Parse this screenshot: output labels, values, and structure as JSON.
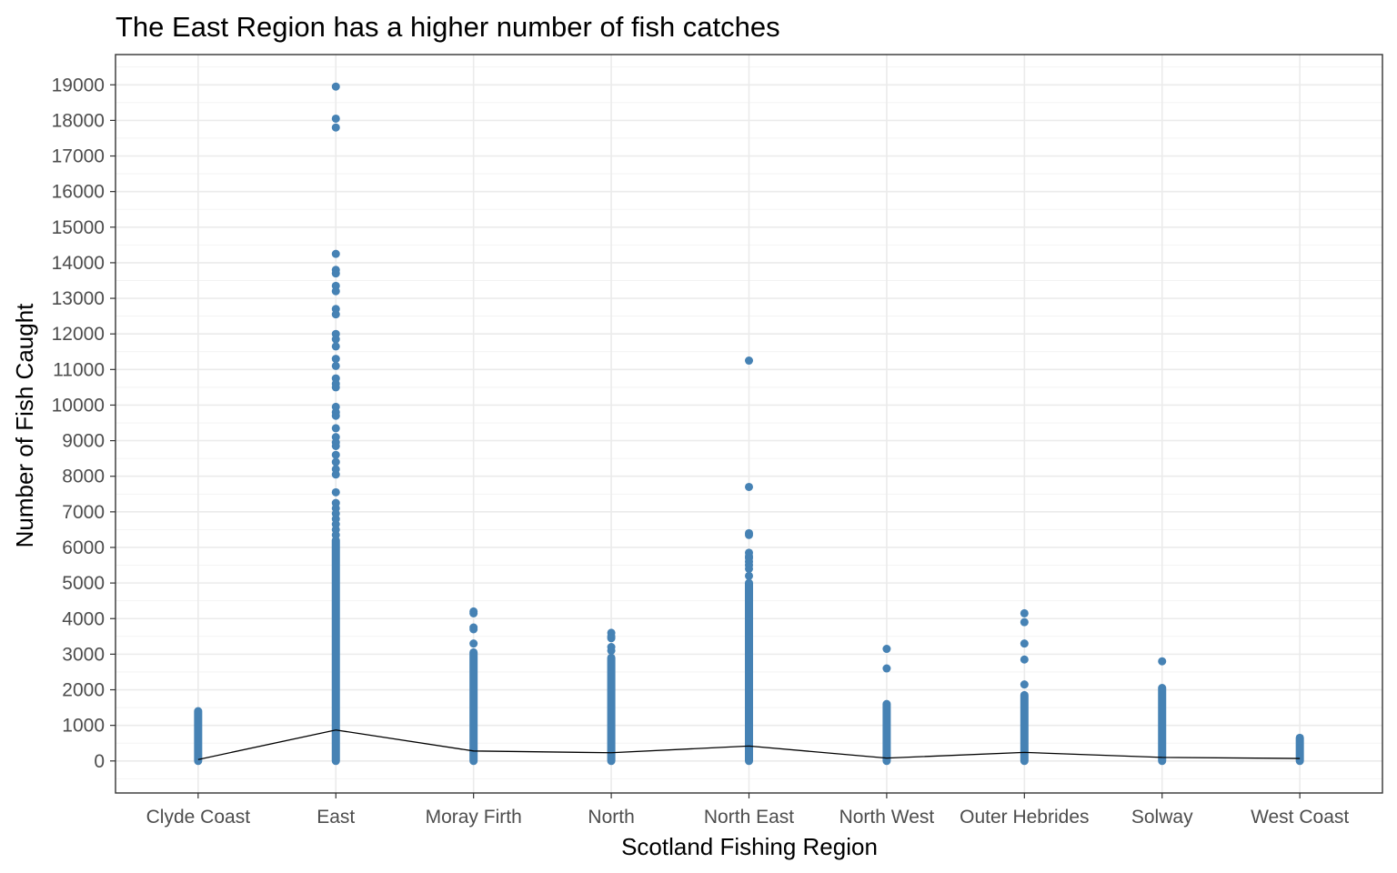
{
  "chart_data": {
    "type": "scatter",
    "title": "The East Region has a higher number of fish catches",
    "xlabel": "Scotland Fishing Region",
    "ylabel": "Number of Fish Caught",
    "categories": [
      "Clyde Coast",
      "East",
      "Moray Firth",
      "North",
      "North East",
      "North West",
      "Outer Hebrides",
      "Solway",
      "West Coast"
    ],
    "ylim": [
      -900,
      19850
    ],
    "yticks": [
      0,
      1000,
      2000,
      3000,
      4000,
      5000,
      6000,
      7000,
      8000,
      9000,
      10000,
      11000,
      12000,
      13000,
      14000,
      15000,
      16000,
      17000,
      18000,
      19000
    ],
    "ytick_labels": [
      "0",
      "1000",
      "2000",
      "3000",
      "4000",
      "5000",
      "6000",
      "7000",
      "8000",
      "9000",
      "10000",
      "11000",
      "12000",
      "13000",
      "14000",
      "15000",
      "16000",
      "17000",
      "18000",
      "19000"
    ],
    "grid": true,
    "point_color": "#4682b4",
    "line_color": "#000000",
    "series": [
      {
        "type": "points",
        "continuous_ranges": [
          [
            0,
            1400
          ],
          [
            0,
            6200
          ],
          [
            0,
            3050
          ],
          [
            0,
            2900
          ],
          [
            0,
            5000
          ],
          [
            0,
            1600
          ],
          [
            0,
            1850
          ],
          [
            0,
            2050
          ],
          [
            0,
            650
          ]
        ],
        "outliers": [
          [],
          [
            18950,
            18050,
            17800,
            14250,
            13800,
            13700,
            13350,
            13200,
            12700,
            12550,
            12000,
            11850,
            11650,
            11300,
            11100,
            10750,
            10600,
            10500,
            9950,
            9800,
            9700,
            9350,
            9100,
            8950,
            8850,
            8600,
            8400,
            8200,
            8050,
            7550,
            7250,
            7100,
            6950,
            6800,
            6650,
            6500,
            6350
          ],
          [
            4200,
            4150,
            3750,
            3700,
            3300
          ],
          [
            3600,
            3500,
            3450,
            3200,
            3100
          ],
          [
            11250,
            7700,
            6400,
            6350,
            5850,
            5750,
            5700,
            5600,
            5500,
            5400,
            5200
          ],
          [
            3150,
            2600
          ],
          [
            4150,
            3900,
            3300,
            2850,
            2150
          ],
          [
            2800
          ],
          []
        ]
      },
      {
        "type": "line",
        "name": "",
        "values": [
          40,
          870,
          280,
          230,
          420,
          80,
          240,
          100,
          70
        ]
      }
    ]
  }
}
